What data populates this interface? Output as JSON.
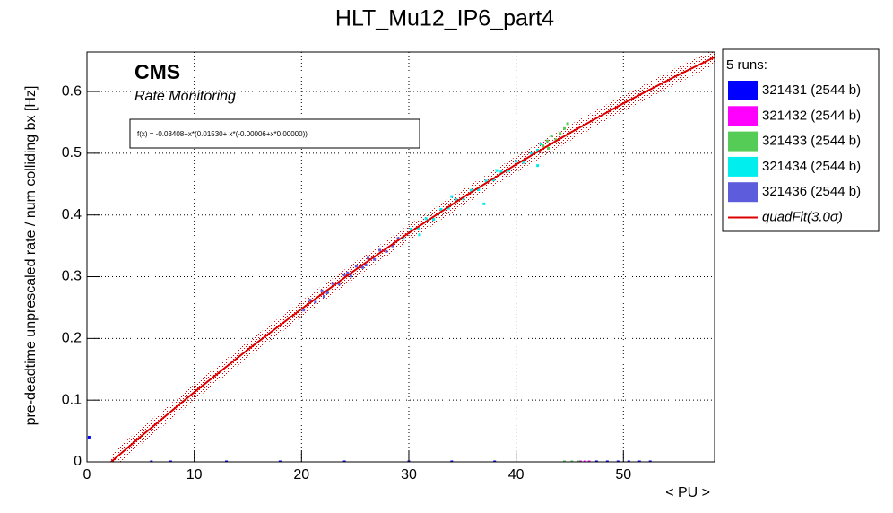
{
  "chart_data": {
    "type": "scatter",
    "title": "HLT_Mu12_IP6_part4",
    "x_label": "< PU >",
    "y_label": "pre-deadtime unprescaled rate / num colliding bx [Hz]",
    "brand": "CMS",
    "subtitle": "Rate Monitoring",
    "fit_formula": "f(x) = -0.03408+x*(0.01530+ x*(-0.00006+x*0.00000))",
    "legend_title": "5 runs:",
    "grid": true,
    "xlim": [
      0,
      58.5
    ],
    "ylim": [
      0,
      0.664
    ],
    "xticks": [
      0,
      10,
      20,
      30,
      40,
      50
    ],
    "yticks": [
      0,
      0.1,
      0.2,
      0.3,
      0.4,
      0.5,
      0.6
    ],
    "series": [
      {
        "name": "321431 (2544 b)",
        "color": "#0000ff",
        "x": [
          0.2,
          6,
          7.8,
          13,
          18,
          24,
          30,
          34,
          38,
          47.5,
          48.5,
          49.5,
          50.5,
          51.5,
          52.5
        ],
        "values": [
          0.04,
          0,
          0,
          0,
          0,
          0,
          0,
          0,
          0,
          0,
          0,
          0,
          0,
          0,
          0
        ]
      },
      {
        "name": "321432 (2544 b)",
        "color": "#ff00ff",
        "x": [
          46.0,
          46.4,
          46.8
        ],
        "values": [
          0,
          0,
          0
        ]
      },
      {
        "name": "321433 (2544 b)",
        "color": "#55cc55",
        "x": [
          42.5,
          42.9,
          43.3,
          43.7,
          44.1,
          44.5,
          43.0,
          44.8,
          44.5,
          45.2,
          45.8
        ],
        "values": [
          0.512,
          0.52,
          0.528,
          0.522,
          0.532,
          0.54,
          0.508,
          0.548,
          0,
          0,
          0
        ]
      },
      {
        "name": "321434 (2544 b)",
        "color": "#00eeee",
        "x": [
          29.5,
          30.2,
          30.9,
          31.6,
          32.3,
          33.0,
          33.7,
          34.4,
          35.1,
          35.8,
          36.5,
          37.2,
          37.9,
          38.6,
          39.3,
          40.0,
          40.7,
          41.4,
          42.0,
          31.0,
          34.0,
          37.0,
          38.2,
          42.0,
          42.3
        ],
        "values": [
          0.362,
          0.377,
          0.378,
          0.394,
          0.393,
          0.409,
          0.411,
          0.425,
          0.426,
          0.44,
          0.441,
          0.455,
          0.457,
          0.47,
          0.472,
          0.487,
          0.485,
          0.5,
          0.505,
          0.368,
          0.43,
          0.418,
          0.472,
          0.48,
          0.515
        ]
      },
      {
        "name": "321436 (2544 b)",
        "color": "#5c5cdd",
        "x": [
          20.2,
          20.8,
          21.3,
          21.9,
          22.4,
          22.9,
          23.5,
          24.0,
          24.6,
          25.1,
          25.7,
          26.2,
          26.8,
          27.3,
          27.9,
          28.5,
          29.0,
          22.1,
          24.3,
          26.0
        ],
        "values": [
          0.246,
          0.262,
          0.259,
          0.277,
          0.274,
          0.289,
          0.288,
          0.303,
          0.301,
          0.317,
          0.315,
          0.33,
          0.328,
          0.343,
          0.341,
          0.35,
          0.362,
          0.268,
          0.306,
          0.319
        ]
      }
    ],
    "fit": {
      "name": "quadFit(3.0σ)",
      "color": "#dd0000",
      "x": [
        2.25,
        5,
        10,
        15,
        20,
        25,
        30,
        35,
        40,
        45,
        50,
        55,
        58.5
      ],
      "values": [
        0,
        0.0409,
        0.1129,
        0.1819,
        0.2479,
        0.3109,
        0.3709,
        0.4279,
        0.4819,
        0.5329,
        0.5809,
        0.6259,
        0.6556
      ],
      "lower": [
        -0.013,
        0.0279,
        0.0999,
        0.1689,
        0.2349,
        0.2979,
        0.3579,
        0.4149,
        0.4689,
        0.5199,
        0.5679,
        0.6129,
        0.6426
      ],
      "upper": [
        0.013,
        0.0539,
        0.1259,
        0.1949,
        0.2609,
        0.3239,
        0.3839,
        0.4409,
        0.4949,
        0.5459,
        0.5939,
        0.6389,
        0.6686
      ]
    }
  }
}
